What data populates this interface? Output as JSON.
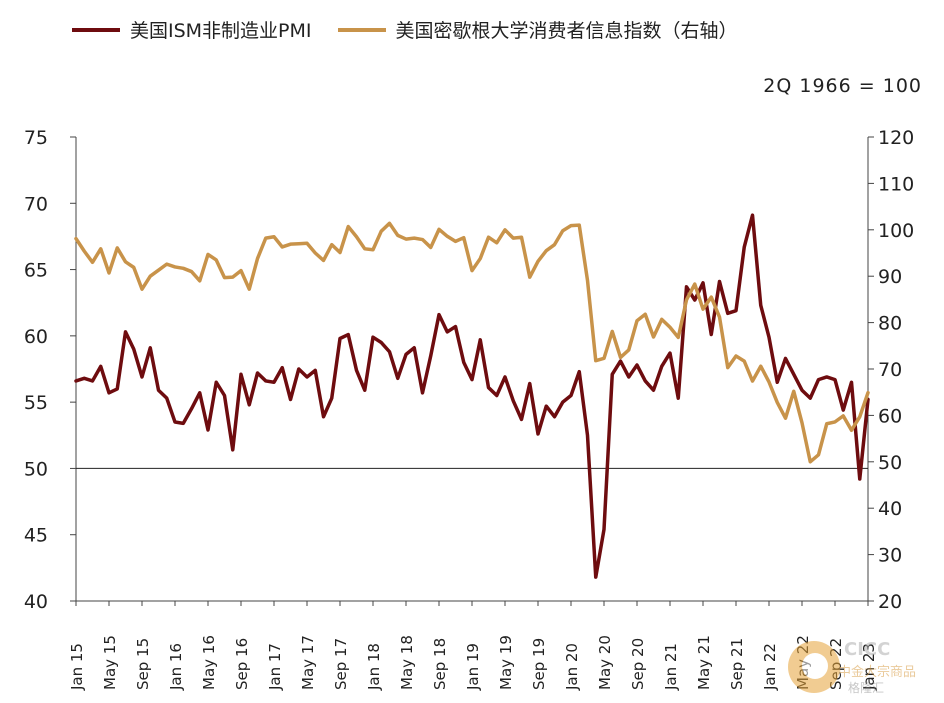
{
  "legend": {
    "series1_label": "美国ISM非制造业PMI",
    "series2_label": "美国密歇根大学消费者信息指数（右轴）"
  },
  "unit_note": "2Q 1966 = 100",
  "watermark": {
    "line1": "CICC",
    "line2": "中金大宗商品",
    "line3": "格隆汇"
  },
  "chart_data": {
    "type": "line",
    "title": "",
    "x_tick_labels": [
      "Jan 15",
      "May 15",
      "Sep 15",
      "Jan 16",
      "May 16",
      "Sep 16",
      "Jan 17",
      "May 17",
      "Sep 17",
      "Jan 18",
      "May 18",
      "Sep 18",
      "Jan 19",
      "May 19",
      "Sep 19",
      "Jan 20",
      "May 20",
      "Sep 20",
      "Jan 21",
      "May 21",
      "Sep 21",
      "Jan 22",
      "May 22",
      "Sep 22",
      "Jan 23"
    ],
    "left_axis": {
      "ylim": [
        40,
        75
      ],
      "ticks": [
        40,
        45,
        50,
        55,
        60,
        65,
        70,
        75
      ]
    },
    "right_axis": {
      "ylim": [
        20,
        120
      ],
      "ticks": [
        20,
        30,
        40,
        50,
        60,
        70,
        80,
        90,
        100,
        110,
        120
      ]
    },
    "reference_line": {
      "axis": "left",
      "value": 50
    },
    "series": [
      {
        "name": "美国ISM非制造业PMI",
        "axis": "left",
        "color": "#6e0c0f",
        "values": [
          56.6,
          56.8,
          56.6,
          57.7,
          55.7,
          56.0,
          60.3,
          59.0,
          56.9,
          59.1,
          55.9,
          55.3,
          53.5,
          53.4,
          54.5,
          55.7,
          52.9,
          56.5,
          55.5,
          51.4,
          57.1,
          54.8,
          57.2,
          56.6,
          56.5,
          57.6,
          55.2,
          57.5,
          56.9,
          57.4,
          53.9,
          55.3,
          59.8,
          60.1,
          57.4,
          55.9,
          59.9,
          59.5,
          58.8,
          56.8,
          58.6,
          59.1,
          55.7,
          58.5,
          61.6,
          60.3,
          60.7,
          58.0,
          56.7,
          59.7,
          56.1,
          55.5,
          56.9,
          55.1,
          53.7,
          56.4,
          52.6,
          54.7,
          53.9,
          55.0,
          55.5,
          57.3,
          52.5,
          41.8,
          45.4,
          57.1,
          58.1,
          56.9,
          57.8,
          56.6,
          55.9,
          57.7,
          58.7,
          55.3,
          63.7,
          62.7,
          64.0,
          60.1,
          64.1,
          61.7,
          61.9,
          66.7,
          69.1,
          62.3,
          59.9,
          56.5,
          58.3,
          57.1,
          55.9,
          55.3,
          56.7,
          56.9,
          56.7,
          54.4,
          56.5,
          49.2,
          55.2
        ]
      },
      {
        "name": "美国密歇根大学消费者信息指数（右轴）",
        "axis": "right",
        "color": "#c8934a",
        "values": [
          98.1,
          95.4,
          93.0,
          95.9,
          90.7,
          96.1,
          93.1,
          91.9,
          87.2,
          90.0,
          91.3,
          92.6,
          92.0,
          91.7,
          91.0,
          89.0,
          94.7,
          93.5,
          89.7,
          89.8,
          91.2,
          87.2,
          93.8,
          98.2,
          98.5,
          96.3,
          96.9,
          97.0,
          97.1,
          95.0,
          93.4,
          96.8,
          95.1,
          100.7,
          98.5,
          95.9,
          95.7,
          99.7,
          101.4,
          98.8,
          98.0,
          98.2,
          97.9,
          96.2,
          100.1,
          98.6,
          97.5,
          98.3,
          91.2,
          93.8,
          98.4,
          97.2,
          100.0,
          98.2,
          98.4,
          89.8,
          93.2,
          95.5,
          96.8,
          99.8,
          100.9,
          101.0,
          89.1,
          71.8,
          72.3,
          78.1,
          72.5,
          74.1,
          80.4,
          81.8,
          76.9,
          80.7,
          79.0,
          76.8,
          84.9,
          88.3,
          82.9,
          85.5,
          81.2,
          70.3,
          72.8,
          71.7,
          67.4,
          70.6,
          67.2,
          62.8,
          59.4,
          65.2,
          58.4,
          50.0,
          51.5,
          58.2,
          58.6,
          59.9,
          56.8,
          59.7,
          64.9
        ]
      }
    ]
  }
}
